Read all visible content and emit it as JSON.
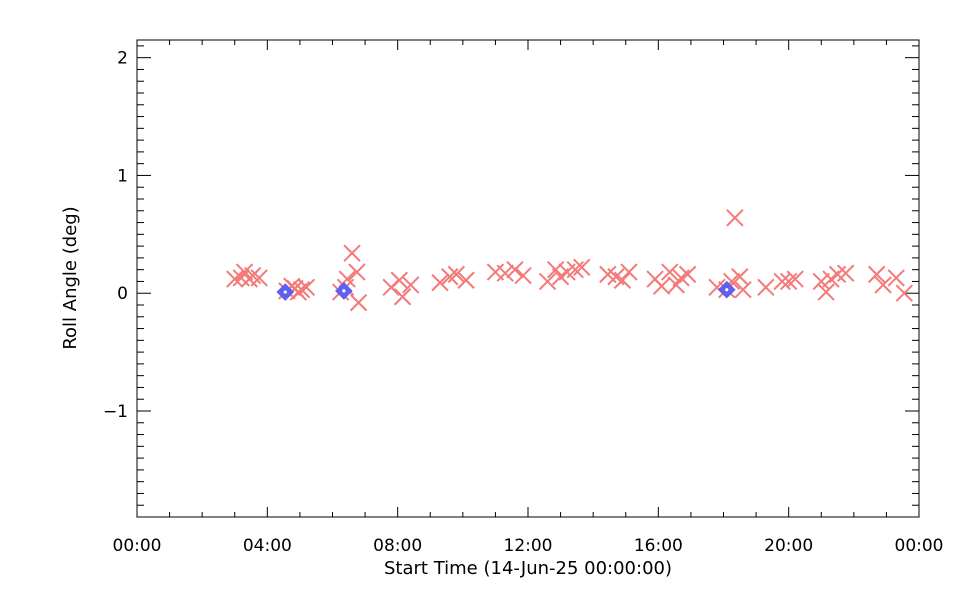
{
  "chart_data": {
    "type": "scatter",
    "title": "",
    "xlabel": "Start Time (14-Jun-25 00:00:00)",
    "ylabel": "Roll Angle (deg)",
    "xlim_hours": [
      0,
      24
    ],
    "ylim": [
      -1.9,
      2.15
    ],
    "x_tick_labels": [
      "00:00",
      "04:00",
      "08:00",
      "12:00",
      "16:00",
      "20:00",
      "00:00"
    ],
    "x_tick_hours": [
      0,
      4,
      8,
      12,
      16,
      20,
      24
    ],
    "y_ticks": [
      -1,
      0,
      1,
      2
    ],
    "y_tick_labels": [
      "−1",
      "0",
      "1",
      "2"
    ],
    "grid": false,
    "colors": {
      "cross": "#f47a7a",
      "diamond": "#5f5ff0"
    },
    "series": [
      {
        "marker": "x",
        "points": [
          [
            3.0,
            0.12
          ],
          [
            3.2,
            0.13
          ],
          [
            3.3,
            0.18
          ],
          [
            3.45,
            0.12
          ],
          [
            3.55,
            0.15
          ],
          [
            3.75,
            0.13
          ],
          [
            4.6,
            0.02
          ],
          [
            4.75,
            0.06
          ],
          [
            4.85,
            0.04
          ],
          [
            4.95,
            0.01
          ],
          [
            5.05,
            0.03
          ],
          [
            5.2,
            0.05
          ],
          [
            6.25,
            0.01
          ],
          [
            6.4,
            0.05
          ],
          [
            6.45,
            0.12
          ],
          [
            6.6,
            0.34
          ],
          [
            6.75,
            0.18
          ],
          [
            6.8,
            -0.08
          ],
          [
            7.8,
            0.05
          ],
          [
            8.05,
            0.11
          ],
          [
            8.15,
            -0.03
          ],
          [
            8.4,
            0.07
          ],
          [
            9.3,
            0.09
          ],
          [
            9.6,
            0.14
          ],
          [
            9.8,
            0.16
          ],
          [
            10.1,
            0.11
          ],
          [
            11.0,
            0.18
          ],
          [
            11.3,
            0.17
          ],
          [
            11.6,
            0.2
          ],
          [
            11.85,
            0.15
          ],
          [
            12.6,
            0.1
          ],
          [
            12.85,
            0.2
          ],
          [
            13.0,
            0.14
          ],
          [
            13.2,
            0.18
          ],
          [
            13.45,
            0.2
          ],
          [
            13.65,
            0.22
          ],
          [
            14.45,
            0.16
          ],
          [
            14.7,
            0.14
          ],
          [
            14.9,
            0.11
          ],
          [
            15.1,
            0.18
          ],
          [
            15.9,
            0.12
          ],
          [
            16.1,
            0.06
          ],
          [
            16.35,
            0.18
          ],
          [
            16.55,
            0.07
          ],
          [
            16.7,
            0.13
          ],
          [
            16.9,
            0.16
          ],
          [
            17.8,
            0.05
          ],
          [
            18.1,
            0.03
          ],
          [
            18.25,
            0.1
          ],
          [
            18.35,
            0.64
          ],
          [
            18.5,
            0.14
          ],
          [
            18.6,
            0.03
          ],
          [
            19.3,
            0.05
          ],
          [
            19.8,
            0.1
          ],
          [
            20.0,
            0.1
          ],
          [
            20.2,
            0.12
          ],
          [
            21.0,
            0.1
          ],
          [
            21.15,
            0.01
          ],
          [
            21.3,
            0.12
          ],
          [
            21.5,
            0.16
          ],
          [
            21.75,
            0.17
          ],
          [
            22.7,
            0.16
          ],
          [
            22.9,
            0.07
          ],
          [
            23.3,
            0.13
          ],
          [
            23.55,
            0.0
          ]
        ]
      },
      {
        "marker": "diamond",
        "points": [
          [
            4.55,
            0.01
          ],
          [
            6.35,
            0.02
          ],
          [
            18.1,
            0.03
          ]
        ]
      }
    ]
  }
}
